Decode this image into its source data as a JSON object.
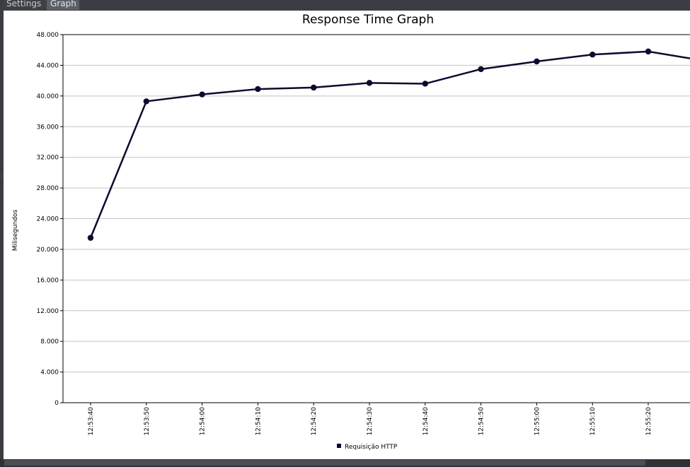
{
  "tabs": [
    {
      "label": "Settings"
    },
    {
      "label": "Graph"
    }
  ],
  "chart_data": {
    "type": "line",
    "title": "Response Time Graph",
    "xlabel": "",
    "ylabel": "Milisegundos",
    "ylim": [
      0,
      48000
    ],
    "y_ticks": [
      "0",
      "4.000",
      "8.000",
      "12.000",
      "16.000",
      "20.000",
      "24.000",
      "28.000",
      "32.000",
      "36.000",
      "40.000",
      "44.000",
      "48.000"
    ],
    "categories": [
      "12:53:40",
      "12:53:50",
      "12:54:00",
      "12:54:10",
      "12:54:20",
      "12:54:30",
      "12:54:40",
      "12:54:50",
      "12:55:00",
      "12:55:10",
      "12:55:20"
    ],
    "series": [
      {
        "name": "Requisição HTTP",
        "color": "#0c0a2e",
        "values": [
          21500,
          39300,
          40200,
          40900,
          41100,
          41700,
          41600,
          43500,
          44500,
          45400,
          45800
        ],
        "trailing_value": 44600
      }
    ],
    "grid": true,
    "legend": "bottom-center"
  }
}
